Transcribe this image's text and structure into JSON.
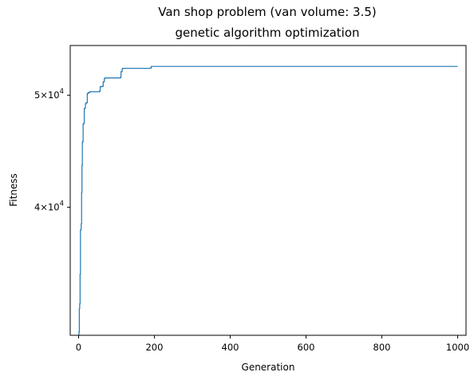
{
  "chart_data": {
    "type": "line",
    "title_line1": "Van shop problem (van volume: 3.5)",
    "title_line2": "genetic algorithm optimization",
    "xlabel": "Generation",
    "ylabel": "Fitness",
    "xlim": [
      -22,
      1022
    ],
    "ylim": [
      31000,
      55200
    ],
    "yscale": "log",
    "grid": false,
    "x_ticks": [
      {
        "value": 0,
        "label": "0"
      },
      {
        "value": 200,
        "label": "200"
      },
      {
        "value": 400,
        "label": "400"
      },
      {
        "value": 600,
        "label": "600"
      },
      {
        "value": 800,
        "label": "800"
      },
      {
        "value": 1000,
        "label": "1000"
      }
    ],
    "y_ticks": [
      {
        "value": 40000,
        "mantissa": "4",
        "times": "×",
        "base": "10",
        "exponent": "4"
      },
      {
        "value": 50000,
        "mantissa": "5",
        "times": "×",
        "base": "10",
        "exponent": "4"
      }
    ],
    "line_color": "#1f77b4",
    "series": [
      {
        "x": [
          0,
          1,
          2,
          3,
          4,
          5,
          6,
          7,
          8,
          9,
          10,
          11,
          12,
          13,
          15,
          18,
          20,
          23,
          25,
          28,
          30,
          55,
          57,
          62,
          65,
          68,
          70,
          110,
          112,
          115,
          117,
          190,
          192,
          1000
        ],
        "y": [
          30000,
          31200,
          32700,
          33000,
          35000,
          38200,
          38300,
          38700,
          41200,
          43500,
          45500,
          45600,
          47200,
          47250,
          48700,
          49150,
          49250,
          50150,
          50250,
          50300,
          50350,
          50400,
          50850,
          50900,
          51350,
          51700,
          51750,
          51800,
          52400,
          52700,
          52750,
          52800,
          52950,
          52950
        ]
      }
    ]
  }
}
